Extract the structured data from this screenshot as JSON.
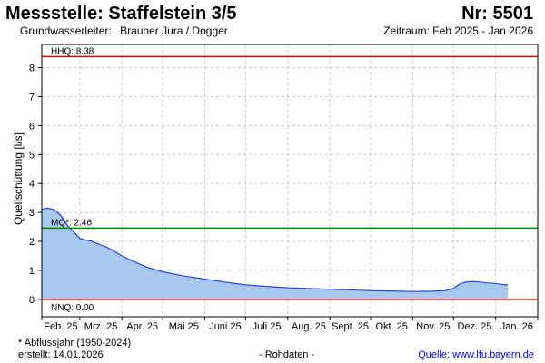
{
  "header": {
    "title": "Messstelle: Staffelstein 3/5",
    "nr": "Nr: 5501",
    "aquifer_label": "Grundwasserleiter:",
    "aquifer_value": "Brauner Jura / Dogger",
    "period": "Zeitraum: Feb 2025 - Jan 2026"
  },
  "footer": {
    "note": "* Abflussjahr (1950-2024)",
    "created": "erstellt:  14.01.2026",
    "raw": "- Rohdaten -",
    "source": "Quelle:  www.lfu.bayern.de"
  },
  "colors": {
    "area_fill": "#a8c8f0",
    "line": "#2a46d8",
    "hhq": "#dd0000",
    "mq": "#008800",
    "nnq": "#dd0000",
    "grid": "#c8c8c8"
  },
  "chart_data": {
    "type": "area",
    "ylabel": "Quellschüttung [l/s]",
    "ylim": [
      -0.6,
      8.8
    ],
    "y_ticks": [
      "0",
      "1",
      "2",
      "3",
      "4",
      "5",
      "6",
      "7",
      "8"
    ],
    "x_categories": [
      "Feb. 25",
      "Mrz. 25",
      "Apr. 25",
      "Mai 25",
      "Juni 25",
      "Juli 25",
      "Aug. 25",
      "Sept. 25",
      "Okt. 25",
      "Nov. 25",
      "Dez. 25",
      "Jan. 26"
    ],
    "grid": true,
    "reference_lines": [
      {
        "label": "HHQ: 8.38",
        "value": 8.38
      },
      {
        "label": "MQ*: 2.46",
        "value": 2.46
      },
      {
        "label": "NNQ: 0.00",
        "value": 0.0
      }
    ],
    "series": [
      {
        "x": [
          "2025-02-01",
          "2025-02-05",
          "2025-02-10",
          "2025-02-15",
          "2025-02-20",
          "2025-02-25",
          "2025-03-01",
          "2025-03-05",
          "2025-03-10",
          "2025-03-15",
          "2025-03-20",
          "2025-03-25",
          "2025-04-01",
          "2025-04-10",
          "2025-04-20",
          "2025-05-01",
          "2025-05-15",
          "2025-06-01",
          "2025-06-15",
          "2025-07-01",
          "2025-07-15",
          "2025-08-01",
          "2025-08-15",
          "2025-09-01",
          "2025-09-15",
          "2025-10-01",
          "2025-10-15",
          "2025-11-01",
          "2025-11-15",
          "2025-11-25",
          "2025-12-01",
          "2025-12-05",
          "2025-12-10",
          "2025-12-15",
          "2025-12-20",
          "2025-12-25",
          "2026-01-01",
          "2026-01-05",
          "2026-01-10"
        ],
        "values": [
          3.1,
          3.15,
          3.1,
          2.9,
          2.55,
          2.3,
          2.1,
          2.05,
          2.0,
          1.9,
          1.82,
          1.7,
          1.5,
          1.3,
          1.1,
          0.95,
          0.82,
          0.7,
          0.6,
          0.5,
          0.45,
          0.4,
          0.38,
          0.35,
          0.33,
          0.3,
          0.29,
          0.27,
          0.28,
          0.3,
          0.38,
          0.52,
          0.6,
          0.62,
          0.6,
          0.57,
          0.55,
          0.52,
          0.5
        ]
      }
    ]
  }
}
